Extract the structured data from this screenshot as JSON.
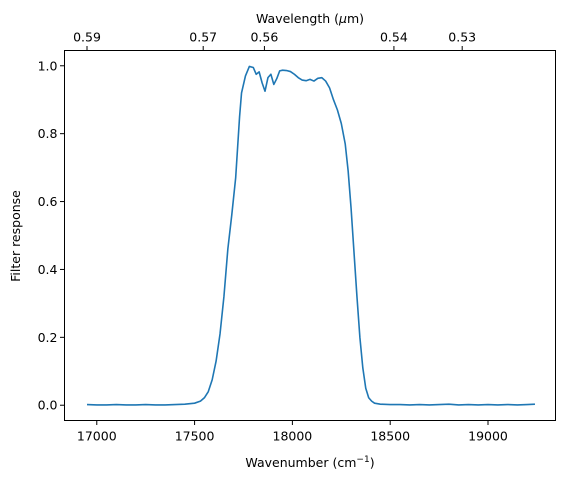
{
  "chart_data": {
    "type": "line",
    "title": "",
    "xlabel": "Wavenumber (cm",
    "xlabel_sup": "−1",
    "xlabel_end": ")",
    "ylabel": "Filter response",
    "top_axis": {
      "label": "Wavelength (",
      "label_italic": "μ",
      "label_end": "m)",
      "ticks": [
        {
          "wavenumber": 16950,
          "label": "0.59"
        },
        {
          "wavenumber": 17544,
          "label": "0.57"
        },
        {
          "wavenumber": 17857,
          "label": "0.56"
        },
        {
          "wavenumber": 18519,
          "label": "0.54"
        },
        {
          "wavenumber": 18868,
          "label": "0.53"
        }
      ]
    },
    "xlim": [
      16835,
      19345
    ],
    "ylim": [
      -0.045,
      1.045
    ],
    "xticks": [
      {
        "value": 17000,
        "label": "17000"
      },
      {
        "value": 17500,
        "label": "17500"
      },
      {
        "value": 18000,
        "label": "18000"
      },
      {
        "value": 18500,
        "label": "18500"
      },
      {
        "value": 19000,
        "label": "19000"
      }
    ],
    "yticks": [
      {
        "value": 0.0,
        "label": "0.0"
      },
      {
        "value": 0.2,
        "label": "0.2"
      },
      {
        "value": 0.4,
        "label": "0.4"
      },
      {
        "value": 0.6,
        "label": "0.6"
      },
      {
        "value": 0.8,
        "label": "0.8"
      },
      {
        "value": 1.0,
        "label": "1.0"
      }
    ],
    "grid": false,
    "series": [
      {
        "color": "#1f77b4",
        "points": [
          [
            16950,
            0.002
          ],
          [
            17000,
            0.001
          ],
          [
            17050,
            0.001
          ],
          [
            17100,
            0.002
          ],
          [
            17150,
            0.001
          ],
          [
            17200,
            0.001
          ],
          [
            17250,
            0.002
          ],
          [
            17300,
            0.001
          ],
          [
            17350,
            0.001
          ],
          [
            17400,
            0.002
          ],
          [
            17450,
            0.003
          ],
          [
            17500,
            0.006
          ],
          [
            17530,
            0.012
          ],
          [
            17550,
            0.022
          ],
          [
            17570,
            0.04
          ],
          [
            17590,
            0.075
          ],
          [
            17610,
            0.13
          ],
          [
            17630,
            0.21
          ],
          [
            17650,
            0.32
          ],
          [
            17670,
            0.46
          ],
          [
            17690,
            0.56
          ],
          [
            17710,
            0.67
          ],
          [
            17720,
            0.76
          ],
          [
            17730,
            0.85
          ],
          [
            17740,
            0.92
          ],
          [
            17760,
            0.97
          ],
          [
            17780,
            0.998
          ],
          [
            17800,
            0.995
          ],
          [
            17815,
            0.975
          ],
          [
            17830,
            0.982
          ],
          [
            17845,
            0.95
          ],
          [
            17860,
            0.925
          ],
          [
            17875,
            0.965
          ],
          [
            17890,
            0.975
          ],
          [
            17905,
            0.945
          ],
          [
            17920,
            0.962
          ],
          [
            17935,
            0.985
          ],
          [
            17950,
            0.987
          ],
          [
            17970,
            0.986
          ],
          [
            17990,
            0.983
          ],
          [
            18010,
            0.975
          ],
          [
            18030,
            0.965
          ],
          [
            18050,
            0.958
          ],
          [
            18070,
            0.956
          ],
          [
            18090,
            0.96
          ],
          [
            18110,
            0.955
          ],
          [
            18130,
            0.963
          ],
          [
            18150,
            0.965
          ],
          [
            18170,
            0.955
          ],
          [
            18190,
            0.935
          ],
          [
            18210,
            0.9
          ],
          [
            18230,
            0.87
          ],
          [
            18250,
            0.83
          ],
          [
            18270,
            0.77
          ],
          [
            18285,
            0.69
          ],
          [
            18300,
            0.58
          ],
          [
            18315,
            0.45
          ],
          [
            18330,
            0.32
          ],
          [
            18345,
            0.2
          ],
          [
            18360,
            0.11
          ],
          [
            18375,
            0.05
          ],
          [
            18390,
            0.022
          ],
          [
            18405,
            0.012
          ],
          [
            18420,
            0.006
          ],
          [
            18450,
            0.003
          ],
          [
            18500,
            0.002
          ],
          [
            18550,
            0.002
          ],
          [
            18600,
            0.001
          ],
          [
            18650,
            0.002
          ],
          [
            18700,
            0.001
          ],
          [
            18750,
            0.002
          ],
          [
            18800,
            0.003
          ],
          [
            18850,
            0.001
          ],
          [
            18900,
            0.002
          ],
          [
            18950,
            0.001
          ],
          [
            19000,
            0.002
          ],
          [
            19050,
            0.001
          ],
          [
            19100,
            0.002
          ],
          [
            19150,
            0.001
          ],
          [
            19200,
            0.002
          ],
          [
            19240,
            0.003
          ]
        ]
      }
    ]
  }
}
